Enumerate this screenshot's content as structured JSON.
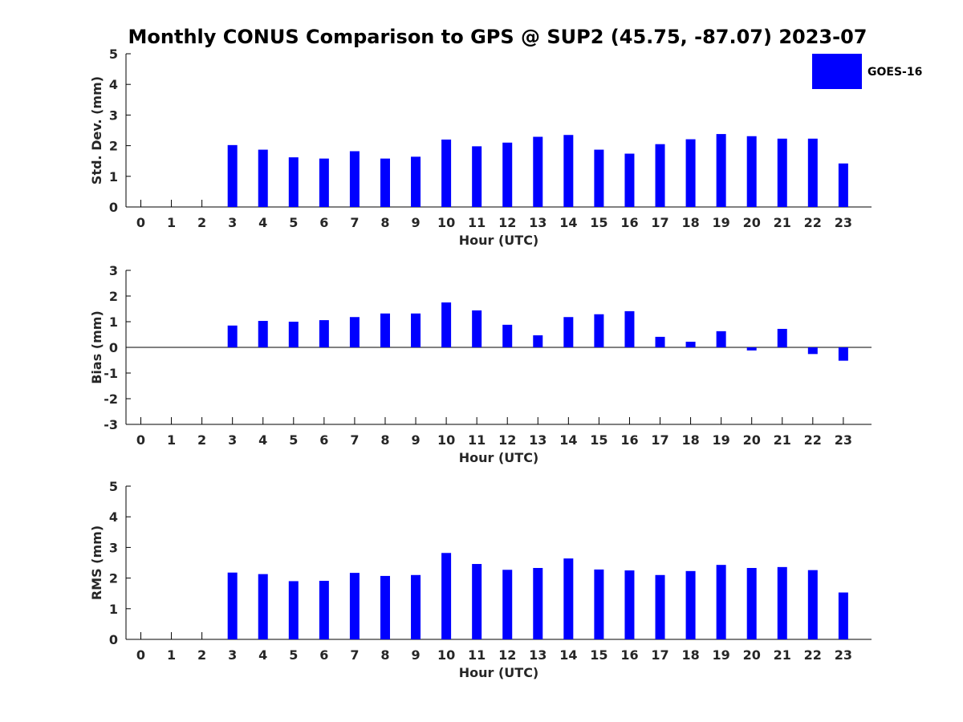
{
  "title": "Monthly CONUS Comparison to GPS @ SUP2 (45.75, -87.07) 2023-07",
  "legend": {
    "label": "GOES-16",
    "color": "#0000ff",
    "placement": "top-right"
  },
  "chart_data": [
    {
      "type": "bar",
      "series": [
        {
          "name": "GOES-16",
          "values": [
            null,
            null,
            null,
            2.02,
            1.87,
            1.62,
            1.58,
            1.82,
            1.58,
            1.64,
            2.2,
            1.98,
            2.1,
            2.29,
            2.35,
            1.87,
            1.74,
            2.05,
            2.21,
            2.38,
            2.31,
            2.23,
            2.23,
            1.42
          ]
        }
      ],
      "categories": [
        "0",
        "1",
        "2",
        "3",
        "4",
        "5",
        "6",
        "7",
        "8",
        "9",
        "10",
        "11",
        "12",
        "13",
        "14",
        "15",
        "16",
        "17",
        "18",
        "19",
        "20",
        "21",
        "22",
        "23"
      ],
      "xlabel": "Hour (UTC)",
      "ylabel": "Std. Dev. (mm)",
      "ylim": [
        0,
        5
      ],
      "yticks": [
        "0",
        "1",
        "2",
        "3",
        "4",
        "5"
      ],
      "grid": false
    },
    {
      "type": "bar",
      "series": [
        {
          "name": "GOES-16",
          "values": [
            null,
            null,
            null,
            0.85,
            1.03,
            1.0,
            1.06,
            1.18,
            1.32,
            1.32,
            1.75,
            1.44,
            0.88,
            0.47,
            1.18,
            1.29,
            1.41,
            0.41,
            0.22,
            0.63,
            -0.12,
            0.72,
            -0.26,
            -0.52
          ]
        }
      ],
      "categories": [
        "0",
        "1",
        "2",
        "3",
        "4",
        "5",
        "6",
        "7",
        "8",
        "9",
        "10",
        "11",
        "12",
        "13",
        "14",
        "15",
        "16",
        "17",
        "18",
        "19",
        "20",
        "21",
        "22",
        "23"
      ],
      "xlabel": "Hour (UTC)",
      "ylabel": "Bias (mm)",
      "ylim": [
        -3,
        3
      ],
      "yticks": [
        "-3",
        "-2",
        "-1",
        "0",
        "1",
        "2",
        "3"
      ],
      "grid": false
    },
    {
      "type": "bar",
      "series": [
        {
          "name": "GOES-16",
          "values": [
            null,
            null,
            null,
            2.18,
            2.13,
            1.9,
            1.91,
            2.17,
            2.07,
            2.1,
            2.82,
            2.46,
            2.27,
            2.33,
            2.64,
            2.28,
            2.25,
            2.1,
            2.23,
            2.43,
            2.33,
            2.36,
            2.26,
            1.53
          ]
        }
      ],
      "categories": [
        "0",
        "1",
        "2",
        "3",
        "4",
        "5",
        "6",
        "7",
        "8",
        "9",
        "10",
        "11",
        "12",
        "13",
        "14",
        "15",
        "16",
        "17",
        "18",
        "19",
        "20",
        "21",
        "22",
        "23"
      ],
      "xlabel": "Hour (UTC)",
      "ylabel": "RMS (mm)",
      "ylim": [
        0,
        5
      ],
      "yticks": [
        "0",
        "1",
        "2",
        "3",
        "4",
        "5"
      ],
      "grid": false
    }
  ]
}
